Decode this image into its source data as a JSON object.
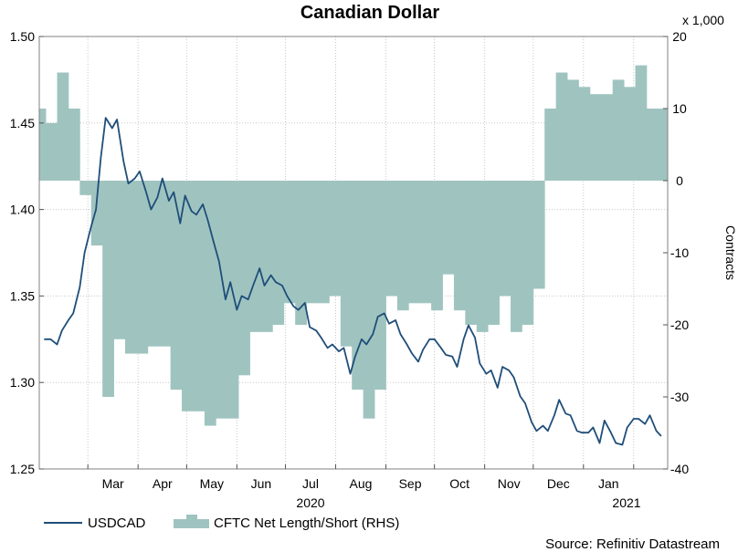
{
  "chart_data": {
    "type": "line",
    "title": "Canadian Dollar",
    "source": "Source: Refinitiv Datastream",
    "y_left": {
      "min": 1.25,
      "max": 1.5,
      "ticks": [
        "1.25",
        "1.30",
        "1.35",
        "1.40",
        "1.45",
        "1.50"
      ]
    },
    "y_right": {
      "min": -40,
      "max": 20,
      "ticks": [
        "-40",
        "-30",
        "-20",
        "-10",
        "0",
        "10",
        "20"
      ],
      "label": "Contracts",
      "unit": "x 1,000"
    },
    "x_axis": {
      "months": [
        "Mar",
        "Apr",
        "May",
        "Jun",
        "Jul",
        "Aug",
        "Sep",
        "Oct",
        "Nov",
        "Dec",
        "Jan"
      ],
      "years": [
        "2020",
        "2021"
      ]
    },
    "grid": true,
    "legend": {
      "placement": "bottom-left"
    },
    "series": [
      {
        "name": "USDCAD",
        "axis": "left",
        "color": "#1f4e79",
        "x": [
          "2020-02-03",
          "2020-02-07",
          "2020-02-11",
          "2020-02-14",
          "2020-02-18",
          "2020-02-21",
          "2020-02-25",
          "2020-02-28",
          "2020-03-03",
          "2020-03-06",
          "2020-03-09",
          "2020-03-12",
          "2020-03-16",
          "2020-03-19",
          "2020-03-23",
          "2020-03-26",
          "2020-03-30",
          "2020-04-02",
          "2020-04-06",
          "2020-04-09",
          "2020-04-13",
          "2020-04-16",
          "2020-04-20",
          "2020-04-23",
          "2020-04-27",
          "2020-04-30",
          "2020-05-04",
          "2020-05-07",
          "2020-05-11",
          "2020-05-14",
          "2020-05-18",
          "2020-05-21",
          "2020-05-25",
          "2020-05-28",
          "2020-06-01",
          "2020-06-04",
          "2020-06-08",
          "2020-06-11",
          "2020-06-15",
          "2020-06-18",
          "2020-06-22",
          "2020-06-25",
          "2020-06-29",
          "2020-07-02",
          "2020-07-06",
          "2020-07-09",
          "2020-07-13",
          "2020-07-16",
          "2020-07-20",
          "2020-07-23",
          "2020-07-27",
          "2020-07-30",
          "2020-08-03",
          "2020-08-06",
          "2020-08-10",
          "2020-08-13",
          "2020-08-17",
          "2020-08-20",
          "2020-08-24",
          "2020-08-27",
          "2020-08-31",
          "2020-09-03",
          "2020-09-07",
          "2020-09-10",
          "2020-09-14",
          "2020-09-17",
          "2020-09-21",
          "2020-09-24",
          "2020-09-28",
          "2020-10-01",
          "2020-10-05",
          "2020-10-08",
          "2020-10-12",
          "2020-10-15",
          "2020-10-19",
          "2020-10-22",
          "2020-10-26",
          "2020-10-29",
          "2020-11-02",
          "2020-11-05",
          "2020-11-09",
          "2020-11-12",
          "2020-11-16",
          "2020-11-19",
          "2020-11-23",
          "2020-11-26",
          "2020-11-30",
          "2020-12-03",
          "2020-12-07",
          "2020-12-10",
          "2020-12-14",
          "2020-12-17",
          "2020-12-21",
          "2020-12-24",
          "2020-12-28",
          "2020-12-31",
          "2021-01-04",
          "2021-01-07",
          "2021-01-11",
          "2021-01-14",
          "2021-01-18",
          "2021-01-21",
          "2021-01-25",
          "2021-01-28",
          "2021-02-01",
          "2021-02-04",
          "2021-02-08",
          "2021-02-11",
          "2021-02-15",
          "2021-02-18"
        ],
        "values": [
          1.325,
          1.325,
          1.322,
          1.33,
          1.336,
          1.34,
          1.355,
          1.375,
          1.39,
          1.4,
          1.43,
          1.453,
          1.447,
          1.452,
          1.428,
          1.415,
          1.418,
          1.422,
          1.41,
          1.4,
          1.407,
          1.418,
          1.405,
          1.41,
          1.392,
          1.408,
          1.399,
          1.397,
          1.403,
          1.394,
          1.38,
          1.37,
          1.348,
          1.358,
          1.342,
          1.35,
          1.348,
          1.356,
          1.366,
          1.356,
          1.362,
          1.358,
          1.356,
          1.35,
          1.344,
          1.342,
          1.346,
          1.332,
          1.33,
          1.326,
          1.32,
          1.322,
          1.318,
          1.32,
          1.305,
          1.315,
          1.325,
          1.322,
          1.328,
          1.338,
          1.34,
          1.334,
          1.336,
          1.328,
          1.322,
          1.317,
          1.312,
          1.319,
          1.325,
          1.325,
          1.32,
          1.316,
          1.315,
          1.309,
          1.325,
          1.333,
          1.326,
          1.311,
          1.305,
          1.307,
          1.297,
          1.309,
          1.307,
          1.303,
          1.292,
          1.288,
          1.277,
          1.272,
          1.275,
          1.272,
          1.281,
          1.29,
          1.282,
          1.281,
          1.272,
          1.271,
          1.271,
          1.274,
          1.265,
          1.278,
          1.271,
          1.265,
          1.264,
          1.274,
          1.279,
          1.279,
          1.276,
          1.281,
          1.272,
          1.269
        ]
      },
      {
        "name": "CFTC Net Length/Short (RHS)",
        "axis": "right",
        "type": "area",
        "color": "#9fc4c0",
        "x": [
          "2020-01-31",
          "2020-02-04",
          "2020-02-11",
          "2020-02-18",
          "2020-02-25",
          "2020-03-03",
          "2020-03-10",
          "2020-03-17",
          "2020-03-24",
          "2020-03-31",
          "2020-04-07",
          "2020-04-14",
          "2020-04-21",
          "2020-04-28",
          "2020-05-05",
          "2020-05-12",
          "2020-05-19",
          "2020-05-26",
          "2020-06-02",
          "2020-06-09",
          "2020-06-16",
          "2020-06-23",
          "2020-06-30",
          "2020-07-07",
          "2020-07-14",
          "2020-07-21",
          "2020-07-28",
          "2020-08-04",
          "2020-08-11",
          "2020-08-18",
          "2020-08-25",
          "2020-09-01",
          "2020-09-08",
          "2020-09-15",
          "2020-09-22",
          "2020-09-29",
          "2020-10-06",
          "2020-10-13",
          "2020-10-20",
          "2020-10-27",
          "2020-11-03",
          "2020-11-10",
          "2020-11-17",
          "2020-11-24",
          "2020-12-01",
          "2020-12-08",
          "2020-12-15",
          "2020-12-22",
          "2020-12-29",
          "2021-01-05",
          "2021-01-12",
          "2021-01-19",
          "2021-01-26",
          "2021-02-02",
          "2021-02-09",
          "2021-02-16"
        ],
        "values": [
          10,
          8,
          15,
          10,
          -2,
          -9,
          -30,
          -22,
          -24,
          -24,
          -23,
          -23,
          -29,
          -32,
          -32,
          -34,
          -33,
          -33,
          -27,
          -21,
          -21,
          -20,
          -17,
          -20,
          -17,
          -17,
          -16,
          -23,
          -29,
          -33,
          -29,
          -16,
          -18,
          -17,
          -17,
          -18,
          -13,
          -18,
          -20,
          -21,
          -20,
          -16,
          -21,
          -20,
          -15,
          10,
          15,
          14,
          13,
          12,
          12,
          14,
          13,
          16,
          10,
          10
        ]
      }
    ]
  }
}
